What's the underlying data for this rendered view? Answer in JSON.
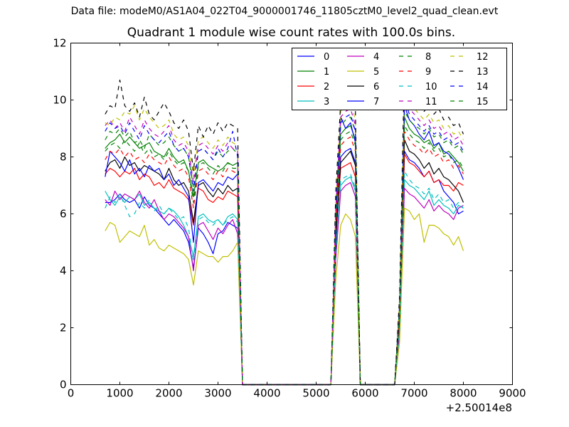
{
  "figure": {
    "suptitle": "Data file: modeM0/AS1A04_022T04_9000001746_11805cztM0_level2_quad_clean.evt"
  },
  "chart_data": {
    "type": "line",
    "title": "Quadrant 1 module wise count rates with 100.0s bins.",
    "xlabel": "",
    "ylabel": "",
    "x_offset_label": "+2.50014e8",
    "xlim": [
      0,
      9000
    ],
    "ylim": [
      0,
      12
    ],
    "xticks": [
      0,
      1000,
      2000,
      3000,
      4000,
      5000,
      6000,
      7000,
      8000,
      9000
    ],
    "yticks": [
      0,
      2,
      4,
      6,
      8,
      10,
      12
    ],
    "grid": false,
    "legend": {
      "placement": "upper-right",
      "columns": 4
    },
    "x": [
      700,
      800,
      900,
      1000,
      1100,
      1200,
      1300,
      1400,
      1500,
      1600,
      1700,
      1800,
      1900,
      2000,
      2100,
      2200,
      2300,
      2400,
      2500,
      2600,
      2700,
      2800,
      2900,
      3000,
      3100,
      3200,
      3300,
      3400,
      3500,
      3600,
      5300,
      5400,
      5500,
      5600,
      5700,
      5800,
      5900,
      6600,
      6700,
      6800,
      6900,
      7000,
      7100,
      7200,
      7300,
      7400,
      7500,
      7600,
      7700,
      7800,
      7900,
      8000
    ],
    "series": [
      {
        "name": "0",
        "color": "#0000ff",
        "dash": "solid",
        "values": [
          6.4,
          6.4,
          6.5,
          6.7,
          6.5,
          6.4,
          6.5,
          6.2,
          6.6,
          6.3,
          6.2,
          6.0,
          5.8,
          5.6,
          5.8,
          5.6,
          5.4,
          5.0,
          4.1,
          5.5,
          5.3,
          5.0,
          4.6,
          5.3,
          5.4,
          5.7,
          5.6,
          5.5,
          0,
          0,
          0,
          5.0,
          8.0,
          8.2,
          8.3,
          7.8,
          0,
          0,
          2.0,
          8.2,
          7.9,
          7.8,
          7.6,
          7.3,
          7.5,
          7.1,
          7.2,
          6.8,
          6.6,
          6.4,
          6.0,
          6.1
        ]
      },
      {
        "name": "1",
        "color": "#008000",
        "dash": "solid",
        "values": [
          8.3,
          8.5,
          8.6,
          8.8,
          8.5,
          8.7,
          8.5,
          8.3,
          8.4,
          8.5,
          8.2,
          8.1,
          8.0,
          8.3,
          8.0,
          7.8,
          7.9,
          7.5,
          6.6,
          7.8,
          7.9,
          7.7,
          7.6,
          7.5,
          7.6,
          7.8,
          7.7,
          7.8,
          0,
          0,
          0,
          5.9,
          8.8,
          9.0,
          9.1,
          8.6,
          0,
          0,
          2.6,
          9.4,
          9.0,
          8.8,
          8.7,
          8.5,
          8.6,
          8.3,
          8.5,
          8.1,
          8.2,
          8.0,
          7.8,
          7.5
        ]
      },
      {
        "name": "2",
        "color": "#ff0000",
        "dash": "solid",
        "values": [
          7.4,
          7.6,
          7.5,
          7.3,
          7.5,
          7.4,
          7.6,
          7.2,
          7.4,
          7.3,
          7.0,
          7.1,
          6.9,
          7.2,
          6.9,
          6.8,
          6.7,
          6.5,
          5.6,
          6.9,
          6.8,
          6.5,
          6.4,
          6.6,
          6.5,
          6.8,
          6.7,
          6.6,
          0,
          0,
          0,
          5.3,
          7.6,
          7.7,
          7.8,
          7.3,
          0,
          0,
          2.3,
          8.1,
          7.8,
          7.7,
          7.5,
          7.3,
          7.5,
          7.1,
          7.2,
          7.0,
          7.0,
          6.8,
          7.1,
          7.0
        ]
      },
      {
        "name": "3",
        "color": "#00bfbf",
        "dash": "solid",
        "values": [
          6.8,
          6.5,
          6.3,
          6.6,
          6.4,
          6.6,
          6.5,
          6.7,
          6.3,
          6.4,
          6.2,
          6.1,
          6.0,
          6.2,
          6.1,
          5.9,
          5.6,
          5.2,
          4.5,
          5.9,
          6.0,
          5.8,
          5.7,
          5.8,
          5.6,
          5.9,
          6.0,
          5.8,
          0,
          0,
          0,
          4.6,
          7.0,
          7.2,
          7.3,
          6.8,
          0,
          0,
          1.8,
          7.2,
          7.0,
          6.9,
          6.7,
          6.5,
          6.8,
          6.3,
          6.5,
          6.3,
          6.2,
          6.0,
          6.3,
          6.2
        ]
      },
      {
        "name": "4",
        "color": "#bf00bf",
        "dash": "solid",
        "values": [
          6.5,
          6.3,
          6.8,
          6.5,
          6.7,
          6.6,
          6.5,
          6.8,
          6.4,
          6.2,
          6.5,
          6.1,
          5.8,
          6.0,
          5.9,
          5.7,
          5.5,
          5.2,
          4.0,
          5.6,
          5.7,
          5.4,
          5.1,
          5.5,
          5.3,
          5.6,
          5.8,
          5.3,
          0,
          0,
          0,
          4.4,
          6.8,
          7.0,
          7.1,
          6.6,
          0,
          0,
          1.7,
          6.9,
          6.7,
          6.6,
          6.4,
          6.2,
          6.5,
          6.1,
          6.3,
          6.1,
          6.0,
          5.8,
          6.2,
          6.3
        ]
      },
      {
        "name": "5",
        "color": "#bfbf00",
        "dash": "solid",
        "values": [
          5.4,
          5.7,
          5.6,
          5.0,
          5.2,
          5.4,
          5.3,
          5.2,
          5.6,
          4.9,
          5.1,
          4.8,
          4.7,
          4.9,
          4.8,
          4.7,
          4.6,
          4.4,
          3.5,
          4.7,
          4.6,
          4.5,
          4.5,
          4.3,
          4.5,
          4.5,
          4.7,
          5.0,
          0,
          0,
          0,
          3.7,
          5.6,
          6.0,
          5.8,
          5.2,
          0,
          0,
          1.5,
          6.2,
          6.1,
          5.8,
          6.0,
          5.0,
          5.6,
          5.6,
          5.5,
          5.3,
          5.2,
          4.9,
          5.2,
          4.7
        ]
      },
      {
        "name": "6",
        "color": "#000000",
        "dash": "solid",
        "values": [
          7.5,
          7.8,
          7.9,
          7.6,
          8.0,
          7.7,
          7.8,
          7.5,
          7.7,
          7.6,
          7.5,
          7.4,
          7.2,
          7.6,
          7.2,
          7.0,
          7.1,
          6.8,
          5.7,
          7.0,
          7.1,
          6.8,
          6.6,
          6.9,
          6.7,
          7.0,
          6.8,
          6.9,
          0,
          0,
          0,
          5.2,
          7.8,
          8.0,
          8.2,
          7.7,
          0,
          0,
          2.4,
          8.6,
          8.2,
          8.1,
          7.9,
          7.6,
          7.8,
          7.4,
          7.6,
          7.3,
          7.2,
          7.0,
          6.8,
          6.4
        ]
      },
      {
        "name": "7",
        "color": "#0000ff",
        "dash": "solid",
        "values": [
          7.3,
          8.2,
          8.0,
          7.8,
          7.5,
          7.9,
          7.4,
          7.6,
          7.3,
          7.7,
          7.5,
          7.6,
          7.2,
          7.4,
          7.0,
          7.2,
          6.9,
          6.6,
          5.0,
          7.1,
          7.2,
          7.0,
          6.8,
          7.1,
          7.0,
          7.3,
          7.2,
          7.4,
          0,
          0,
          0,
          5.6,
          9.4,
          9.0,
          9.2,
          8.5,
          0,
          0,
          2.8,
          9.8,
          9.3,
          9.1,
          8.8,
          8.6,
          8.9,
          8.4,
          8.5,
          8.2,
          8.1,
          7.9,
          7.6,
          7.2
        ]
      },
      {
        "name": "8",
        "color": "#008000",
        "dash": "dashed",
        "values": [
          8.6,
          8.9,
          8.8,
          9.0,
          8.7,
          8.9,
          8.5,
          8.6,
          8.3,
          8.8,
          8.6,
          8.4,
          8.5,
          8.7,
          8.4,
          8.2,
          8.3,
          8.0,
          6.9,
          8.2,
          8.3,
          8.1,
          7.9,
          8.2,
          8.0,
          8.2,
          8.3,
          8.1,
          0,
          0,
          0,
          6.0,
          9.1,
          9.3,
          9.4,
          8.9,
          0,
          0,
          2.7,
          9.6,
          9.3,
          9.1,
          9.0,
          8.8,
          9.0,
          8.7,
          8.8,
          8.5,
          8.6,
          8.3,
          8.4,
          8.1
        ]
      },
      {
        "name": "9",
        "color": "#ff0000",
        "dash": "dashed",
        "values": [
          7.9,
          8.2,
          8.1,
          8.3,
          8.0,
          8.2,
          7.9,
          8.0,
          7.8,
          8.1,
          7.9,
          7.8,
          7.7,
          8.0,
          7.7,
          7.5,
          7.6,
          7.3,
          6.2,
          7.5,
          7.6,
          7.4,
          7.2,
          7.5,
          7.3,
          7.6,
          7.5,
          7.4,
          0,
          0,
          0,
          5.6,
          8.4,
          8.6,
          8.7,
          8.2,
          0,
          0,
          2.5,
          8.9,
          8.6,
          8.4,
          8.3,
          8.1,
          8.3,
          8.0,
          8.1,
          7.8,
          7.9,
          7.6,
          7.7,
          7.4
        ]
      },
      {
        "name": "10",
        "color": "#00bfbf",
        "dash": "dashed",
        "values": [
          6.2,
          6.6,
          6.4,
          6.7,
          6.3,
          5.9,
          6.0,
          6.4,
          6.2,
          6.5,
          6.1,
          6.3,
          6.0,
          6.2,
          6.0,
          5.8,
          5.9,
          5.5,
          4.3,
          5.8,
          5.9,
          5.7,
          5.6,
          5.8,
          5.6,
          5.8,
          5.9,
          5.7,
          0,
          0,
          0,
          4.6,
          7.2,
          7.3,
          7.4,
          6.9,
          0,
          0,
          1.9,
          7.5,
          7.2,
          7.0,
          6.9,
          6.7,
          6.9,
          6.5,
          6.7,
          6.4,
          6.5,
          6.2,
          6.4,
          6.2
        ]
      },
      {
        "name": "11",
        "color": "#bf00bf",
        "dash": "dashed",
        "values": [
          9.1,
          9.3,
          9.0,
          9.2,
          8.9,
          9.4,
          9.1,
          8.8,
          9.3,
          9.0,
          8.8,
          8.7,
          8.9,
          9.1,
          8.6,
          8.4,
          8.5,
          8.2,
          7.1,
          8.4,
          8.5,
          8.3,
          8.1,
          8.4,
          8.2,
          8.5,
          8.3,
          8.2,
          0,
          0,
          0,
          6.2,
          9.4,
          9.6,
          9.7,
          9.1,
          0,
          0,
          2.8,
          10.3,
          9.7,
          9.5,
          9.3,
          9.1,
          9.3,
          9.0,
          9.1,
          8.8,
          8.9,
          8.6,
          8.7,
          8.4
        ]
      },
      {
        "name": "12",
        "color": "#bfbf00",
        "dash": "dashed",
        "values": [
          9.2,
          9.1,
          9.4,
          9.3,
          9.6,
          9.5,
          9.8,
          9.3,
          9.7,
          9.4,
          9.2,
          9.0,
          9.1,
          9.3,
          8.8,
          8.6,
          8.7,
          8.4,
          7.3,
          8.6,
          8.7,
          8.5,
          8.3,
          8.6,
          8.4,
          8.7,
          8.5,
          8.4,
          0,
          0,
          0,
          6.4,
          9.6,
          9.8,
          9.9,
          9.3,
          0,
          0,
          2.9,
          10.5,
          9.9,
          9.7,
          9.5,
          9.3,
          9.5,
          9.2,
          9.3,
          9.0,
          9.1,
          8.8,
          8.9,
          8.6
        ]
      },
      {
        "name": "13",
        "color": "#000000",
        "dash": "dashed",
        "values": [
          9.5,
          9.8,
          9.7,
          10.7,
          9.8,
          9.6,
          9.9,
          9.4,
          10.1,
          9.5,
          9.3,
          9.6,
          9.9,
          9.6,
          9.2,
          9.0,
          9.3,
          8.9,
          7.5,
          9.1,
          8.7,
          9.1,
          8.8,
          9.2,
          8.9,
          9.2,
          9.1,
          9.0,
          0,
          0,
          0,
          6.8,
          9.9,
          10.1,
          10.2,
          9.6,
          0,
          0,
          3.1,
          11.3,
          10.3,
          10.1,
          9.9,
          9.6,
          9.8,
          9.5,
          9.7,
          9.3,
          9.4,
          9.1,
          9.2,
          8.8
        ]
      },
      {
        "name": "14",
        "color": "#0000ff",
        "dash": "dashed",
        "values": [
          8.9,
          9.2,
          9.0,
          9.1,
          8.8,
          9.2,
          8.9,
          8.6,
          9.1,
          8.8,
          8.6,
          8.5,
          8.7,
          8.9,
          8.4,
          8.2,
          8.3,
          8.0,
          6.8,
          8.2,
          8.3,
          8.1,
          7.9,
          8.3,
          8.0,
          8.3,
          8.9,
          8.0,
          0,
          0,
          0,
          6.1,
          9.2,
          9.4,
          9.5,
          8.9,
          0,
          0,
          2.7,
          10.0,
          9.5,
          9.3,
          9.1,
          8.9,
          9.1,
          8.8,
          8.9,
          8.6,
          8.7,
          8.4,
          8.5,
          8.2
        ]
      },
      {
        "name": "15",
        "color": "#008000",
        "dash": "dashed",
        "values": [
          8.2,
          8.4,
          8.5,
          8.3,
          8.6,
          8.4,
          8.2,
          8.5,
          8.1,
          8.3,
          8.0,
          8.1,
          7.9,
          8.2,
          7.9,
          7.7,
          7.8,
          7.5,
          6.4,
          7.7,
          7.8,
          7.6,
          7.4,
          7.7,
          7.5,
          7.8,
          7.6,
          7.6,
          0,
          0,
          0,
          5.7,
          8.6,
          8.8,
          8.9,
          8.4,
          0,
          0,
          2.6,
          9.1,
          8.8,
          8.6,
          8.5,
          8.3,
          8.5,
          8.2,
          8.3,
          8.0,
          8.1,
          7.8,
          7.9,
          7.6
        ]
      }
    ]
  }
}
